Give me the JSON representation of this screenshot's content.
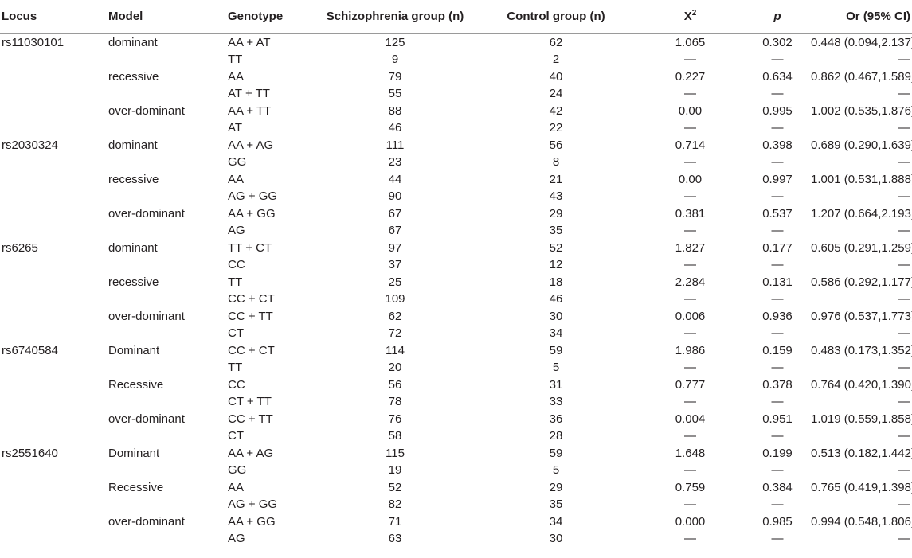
{
  "header": {
    "locus": "Locus",
    "model": "Model",
    "genotype": "Genotype",
    "schizophrenia": "Schizophrenia group (n)",
    "control": "Control group (n)",
    "x2_base": "X",
    "x2_sup": "2",
    "p": "p",
    "or": "Or (95% CI)"
  },
  "rows": [
    {
      "locus": "rs11030101",
      "model": "dominant",
      "genotype": "AA + AT",
      "sch": "125",
      "ctrl": "62",
      "x2": "1.065",
      "p": "0.302",
      "or": "0.448 (0.094,2.137)"
    },
    {
      "locus": "",
      "model": "",
      "genotype": "TT",
      "sch": "9",
      "ctrl": "2",
      "x2": "—",
      "p": "—",
      "or": "—"
    },
    {
      "locus": "",
      "model": "recessive",
      "genotype": "AA",
      "sch": "79",
      "ctrl": "40",
      "x2": "0.227",
      "p": "0.634",
      "or": "0.862 (0.467,1.589)"
    },
    {
      "locus": "",
      "model": "",
      "genotype": "AT + TT",
      "sch": "55",
      "ctrl": "24",
      "x2": "—",
      "p": "—",
      "or": "—"
    },
    {
      "locus": "",
      "model": "over-dominant",
      "genotype": "AA + TT",
      "sch": "88",
      "ctrl": "42",
      "x2": "0.00",
      "p": "0.995",
      "or": "1.002 (0.535,1.876)"
    },
    {
      "locus": "",
      "model": "",
      "genotype": "AT",
      "sch": "46",
      "ctrl": "22",
      "x2": "—",
      "p": "—",
      "or": "—"
    },
    {
      "locus": "rs2030324",
      "model": "dominant",
      "genotype": "AA + AG",
      "sch": "111",
      "ctrl": "56",
      "x2": "0.714",
      "p": "0.398",
      "or": "0.689 (0.290,1.639)"
    },
    {
      "locus": "",
      "model": "",
      "genotype": "GG",
      "sch": "23",
      "ctrl": "8",
      "x2": "—",
      "p": "—",
      "or": "—"
    },
    {
      "locus": "",
      "model": "recessive",
      "genotype": "AA",
      "sch": "44",
      "ctrl": "21",
      "x2": "0.00",
      "p": "0.997",
      "or": "1.001 (0.531,1.888)"
    },
    {
      "locus": "",
      "model": "",
      "genotype": "AG + GG",
      "sch": "90",
      "ctrl": "43",
      "x2": "—",
      "p": "—",
      "or": "—"
    },
    {
      "locus": "",
      "model": "over-dominant",
      "genotype": "AA + GG",
      "sch": "67",
      "ctrl": "29",
      "x2": "0.381",
      "p": "0.537",
      "or": "1.207 (0.664,2.193)"
    },
    {
      "locus": "",
      "model": "",
      "genotype": "AG",
      "sch": "67",
      "ctrl": "35",
      "x2": "—",
      "p": "—",
      "or": "—"
    },
    {
      "locus": "rs6265",
      "model": "dominant",
      "genotype": "TT + CT",
      "sch": "97",
      "ctrl": "52",
      "x2": "1.827",
      "p": "0.177",
      "or": "0.605 (0.291,1.259)"
    },
    {
      "locus": "",
      "model": "",
      "genotype": "CC",
      "sch": "37",
      "ctrl": "12",
      "x2": "—",
      "p": "—",
      "or": "—"
    },
    {
      "locus": "",
      "model": "recessive",
      "genotype": "TT",
      "sch": "25",
      "ctrl": "18",
      "x2": "2.284",
      "p": "0.131",
      "or": "0.586 (0.292,1.177)"
    },
    {
      "locus": "",
      "model": "",
      "genotype": "CC + CT",
      "sch": "109",
      "ctrl": "46",
      "x2": "—",
      "p": "—",
      "or": "—"
    },
    {
      "locus": "",
      "model": "over-dominant",
      "genotype": "CC + TT",
      "sch": "62",
      "ctrl": "30",
      "x2": "0.006",
      "p": "0.936",
      "or": "0.976 (0.537,1.773)"
    },
    {
      "locus": "",
      "model": "",
      "genotype": "CT",
      "sch": "72",
      "ctrl": "34",
      "x2": "—",
      "p": "—",
      "or": "—"
    },
    {
      "locus": "rs6740584",
      "model": "Dominant",
      "genotype": "CC + CT",
      "sch": "114",
      "ctrl": "59",
      "x2": "1.986",
      "p": "0.159",
      "or": "0.483 (0.173,1.352)"
    },
    {
      "locus": "",
      "model": "",
      "genotype": "TT",
      "sch": "20",
      "ctrl": "5",
      "x2": "—",
      "p": "—",
      "or": "—"
    },
    {
      "locus": "",
      "model": "Recessive",
      "genotype": "CC",
      "sch": "56",
      "ctrl": "31",
      "x2": "0.777",
      "p": "0.378",
      "or": "0.764 (0.420,1.390)"
    },
    {
      "locus": "",
      "model": "",
      "genotype": "CT + TT",
      "sch": "78",
      "ctrl": "33",
      "x2": "—",
      "p": "—",
      "or": "—"
    },
    {
      "locus": "",
      "model": "over-dominant",
      "genotype": "CC + TT",
      "sch": "76",
      "ctrl": "36",
      "x2": "0.004",
      "p": "0.951",
      "or": "1.019 (0.559,1.858)"
    },
    {
      "locus": "",
      "model": "",
      "genotype": "CT",
      "sch": "58",
      "ctrl": "28",
      "x2": "—",
      "p": "—",
      "or": "—"
    },
    {
      "locus": "rs2551640",
      "model": "Dominant",
      "genotype": "AA + AG",
      "sch": "115",
      "ctrl": "59",
      "x2": "1.648",
      "p": "0.199",
      "or": "0.513 (0.182,1.442)"
    },
    {
      "locus": "",
      "model": "",
      "genotype": "GG",
      "sch": "19",
      "ctrl": "5",
      "x2": "—",
      "p": "—",
      "or": "—"
    },
    {
      "locus": "",
      "model": "Recessive",
      "genotype": "AA",
      "sch": "52",
      "ctrl": "29",
      "x2": "0.759",
      "p": "0.384",
      "or": "0.765 (0.419,1.398)"
    },
    {
      "locus": "",
      "model": "",
      "genotype": "AG + GG",
      "sch": "82",
      "ctrl": "35",
      "x2": "—",
      "p": "—",
      "or": "—"
    },
    {
      "locus": "",
      "model": "over-dominant",
      "genotype": "AA + GG",
      "sch": "71",
      "ctrl": "34",
      "x2": "0.000",
      "p": "0.985",
      "or": "0.994 (0.548,1.806)"
    },
    {
      "locus": "",
      "model": "",
      "genotype": "AG",
      "sch": "63",
      "ctrl": "30",
      "x2": "—",
      "p": "—",
      "or": "—"
    }
  ]
}
